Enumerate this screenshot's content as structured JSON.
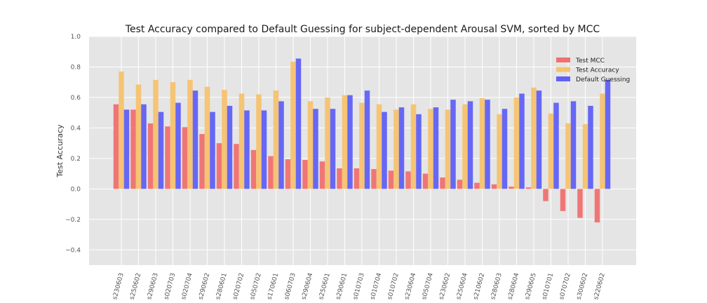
{
  "chart_data": {
    "type": "bar",
    "title": "Test Accuracy compared to Default Guessing for subject-dependent Arousal SVM, sorted by MCC",
    "xlabel": "",
    "ylabel": "Test Accuracy",
    "ylim": [
      -0.5,
      1.0
    ],
    "yticks": [
      "−0.4",
      "−0.2",
      "0.0",
      "0.2",
      "0.4",
      "0.6",
      "0.8",
      "1.0"
    ],
    "grid": true,
    "legend_position": "top-right",
    "categories": [
      "s230603",
      "s250602",
      "s290603",
      "s020703",
      "s020704",
      "s290602",
      "s280601",
      "s020702",
      "s050702",
      "s170601",
      "s060703",
      "s290604",
      "s250601",
      "s290601",
      "s010703",
      "s010704",
      "s010702",
      "s230604",
      "s050704",
      "s230602",
      "s250604",
      "s210602",
      "s280603",
      "s280604",
      "s290605",
      "s010701",
      "s070702",
      "s300602",
      "s220602"
    ],
    "series": [
      {
        "name": "Test MCC",
        "color": "#f07070",
        "values": [
          0.555,
          0.52,
          0.43,
          0.41,
          0.405,
          0.36,
          0.3,
          0.295,
          0.255,
          0.215,
          0.195,
          0.19,
          0.18,
          0.135,
          0.135,
          0.13,
          0.12,
          0.115,
          0.1,
          0.075,
          0.06,
          0.04,
          0.03,
          0.015,
          0.01,
          -0.08,
          -0.145,
          -0.19,
          -0.22
        ]
      },
      {
        "name": "Test Accuracy",
        "color": "#f5c26e",
        "values": [
          0.77,
          0.685,
          0.715,
          0.7,
          0.715,
          0.67,
          0.65,
          0.625,
          0.62,
          0.645,
          0.835,
          0.575,
          0.6,
          0.615,
          0.565,
          0.555,
          0.52,
          0.555,
          0.525,
          0.52,
          0.555,
          0.595,
          0.49,
          0.6,
          0.665,
          0.495,
          0.43,
          0.425,
          0.625
        ]
      },
      {
        "name": "Default Guessing",
        "color": "#6060f5",
        "values": [
          0.52,
          0.555,
          0.505,
          0.565,
          0.645,
          0.505,
          0.545,
          0.515,
          0.515,
          0.575,
          0.855,
          0.525,
          0.525,
          0.615,
          0.645,
          0.505,
          0.535,
          0.49,
          0.535,
          0.585,
          0.575,
          0.585,
          0.525,
          0.625,
          0.645,
          0.565,
          0.575,
          0.545,
          0.715
        ]
      }
    ]
  }
}
